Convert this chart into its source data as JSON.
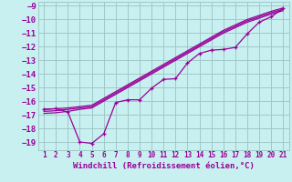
{
  "xlabel": "Windchill (Refroidissement éolien,°C)",
  "bg_color": "#c8f0f0",
  "grid_color": "#a0c8c8",
  "line_color": "#990099",
  "x": [
    1,
    2,
    3,
    4,
    5,
    6,
    7,
    8,
    9,
    10,
    11,
    12,
    13,
    14,
    15,
    16,
    17,
    18,
    19,
    20,
    21
  ],
  "line1": [
    -16.6,
    -16.55,
    -16.5,
    -16.4,
    -16.3,
    -15.8,
    -15.3,
    -14.8,
    -14.3,
    -13.8,
    -13.3,
    -12.8,
    -12.3,
    -11.8,
    -11.3,
    -10.8,
    -10.4,
    -10.0,
    -9.7,
    -9.4,
    -9.15
  ],
  "line2": [
    -16.75,
    -16.7,
    -16.6,
    -16.5,
    -16.4,
    -15.9,
    -15.4,
    -14.9,
    -14.4,
    -13.9,
    -13.4,
    -12.9,
    -12.4,
    -11.9,
    -11.4,
    -10.9,
    -10.5,
    -10.1,
    -9.8,
    -9.5,
    -9.25
  ],
  "line3": [
    -16.9,
    -16.85,
    -16.75,
    -16.6,
    -16.5,
    -16.0,
    -15.5,
    -15.0,
    -14.5,
    -14.0,
    -13.5,
    -13.0,
    -12.5,
    -12.0,
    -11.5,
    -11.0,
    -10.6,
    -10.2,
    -9.9,
    -9.6,
    -9.35
  ],
  "line_marker": [
    -16.6,
    -16.55,
    -16.8,
    -19.0,
    -19.1,
    -18.4,
    -16.1,
    -15.9,
    -15.9,
    -15.05,
    -14.4,
    -14.35,
    -13.2,
    -12.5,
    -12.25,
    -12.2,
    -12.05,
    -11.05,
    -10.2,
    -9.8,
    -9.2
  ],
  "ylim": [
    -19.6,
    -8.7
  ],
  "xlim": [
    0.5,
    21.5
  ],
  "yticks": [
    -9,
    -10,
    -11,
    -12,
    -13,
    -14,
    -15,
    -16,
    -17,
    -18,
    -19
  ],
  "xticks": [
    1,
    2,
    3,
    4,
    5,
    6,
    7,
    8,
    9,
    10,
    11,
    12,
    13,
    14,
    15,
    16,
    17,
    18,
    19,
    20,
    21
  ]
}
